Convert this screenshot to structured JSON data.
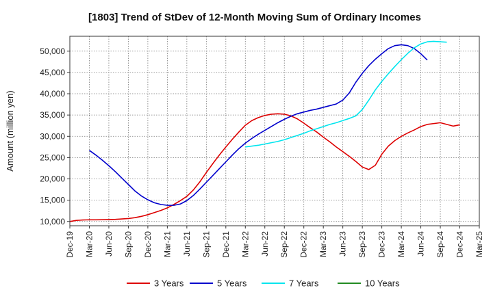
{
  "chart_data": {
    "type": "line",
    "title": "[1803]  Trend of StDev of 12-Month Moving Sum of Ordinary Incomes",
    "xlabel": "",
    "ylabel": "Amount (million yen)",
    "ylim": [
      9000,
      53500
    ],
    "yticks": [
      10000,
      15000,
      20000,
      25000,
      30000,
      35000,
      40000,
      45000,
      50000
    ],
    "ytick_labels": [
      "10,000",
      "15,000",
      "20,000",
      "25,000",
      "30,000",
      "35,000",
      "40,000",
      "45,000",
      "50,000"
    ],
    "x_start": "Dec-19",
    "x_months": 63,
    "xticks": [
      {
        "m": 0,
        "label": "Dec-19"
      },
      {
        "m": 3,
        "label": "Mar-20"
      },
      {
        "m": 6,
        "label": "Jun-20"
      },
      {
        "m": 9,
        "label": "Sep-20"
      },
      {
        "m": 12,
        "label": "Dec-20"
      },
      {
        "m": 15,
        "label": "Mar-21"
      },
      {
        "m": 18,
        "label": "Jun-21"
      },
      {
        "m": 21,
        "label": "Sep-21"
      },
      {
        "m": 24,
        "label": "Dec-21"
      },
      {
        "m": 27,
        "label": "Mar-22"
      },
      {
        "m": 30,
        "label": "Jun-22"
      },
      {
        "m": 33,
        "label": "Sep-22"
      },
      {
        "m": 36,
        "label": "Dec-22"
      },
      {
        "m": 39,
        "label": "Mar-23"
      },
      {
        "m": 42,
        "label": "Jun-23"
      },
      {
        "m": 45,
        "label": "Sep-23"
      },
      {
        "m": 48,
        "label": "Dec-23"
      },
      {
        "m": 51,
        "label": "Mar-24"
      },
      {
        "m": 54,
        "label": "Jun-24"
      },
      {
        "m": 57,
        "label": "Sep-24"
      },
      {
        "m": 60,
        "label": "Dec-24"
      },
      {
        "m": 63,
        "label": "Mar-25"
      }
    ],
    "series": [
      {
        "name": "3 Years",
        "color": "#dd0000",
        "start": 0,
        "values": [
          10000,
          10250,
          10350,
          10400,
          10400,
          10420,
          10450,
          10500,
          10600,
          10700,
          10900,
          11200,
          11600,
          12100,
          12600,
          13200,
          14000,
          14900,
          15900,
          17400,
          19300,
          21500,
          23600,
          25600,
          27500,
          29300,
          31000,
          32600,
          33700,
          34400,
          34900,
          35200,
          35300,
          35200,
          34800,
          34100,
          33100,
          32000,
          31000,
          29800,
          28700,
          27500,
          26400,
          25300,
          24100,
          22800,
          22200,
          23200,
          25800,
          27700,
          29000,
          30000,
          30800,
          31500,
          32300,
          32800,
          33000,
          33200,
          32800,
          32400,
          32700
        ]
      },
      {
        "name": "5 Years",
        "color": "#0000cc",
        "start": 3,
        "values": [
          26700,
          25600,
          24400,
          23100,
          21700,
          20200,
          18700,
          17200,
          16000,
          15100,
          14400,
          14000,
          13800,
          13800,
          14100,
          14900,
          16100,
          17600,
          19200,
          20800,
          22400,
          24000,
          25600,
          27100,
          28400,
          29500,
          30500,
          31400,
          32300,
          33200,
          34000,
          34700,
          35300,
          35700,
          36100,
          36400,
          36800,
          37200,
          37600,
          38500,
          40200,
          42700,
          44800,
          46600,
          48100,
          49400,
          50600,
          51300,
          51500,
          51300,
          50600,
          49400,
          47900
        ]
      },
      {
        "name": "7 Years",
        "color": "#00e5ee",
        "start": 27,
        "values": [
          27500,
          27700,
          27900,
          28200,
          28500,
          28800,
          29200,
          29700,
          30200,
          30700,
          31300,
          31800,
          32300,
          32800,
          33200,
          33700,
          34200,
          34800,
          36300,
          38500,
          40900,
          42900,
          44700,
          46400,
          48000,
          49500,
          50800,
          51700,
          52200,
          52300,
          52200,
          52100
        ]
      },
      {
        "name": "10 Years",
        "color": "#228b22",
        "start": 0,
        "values": []
      }
    ],
    "legend_position": "bottom"
  }
}
